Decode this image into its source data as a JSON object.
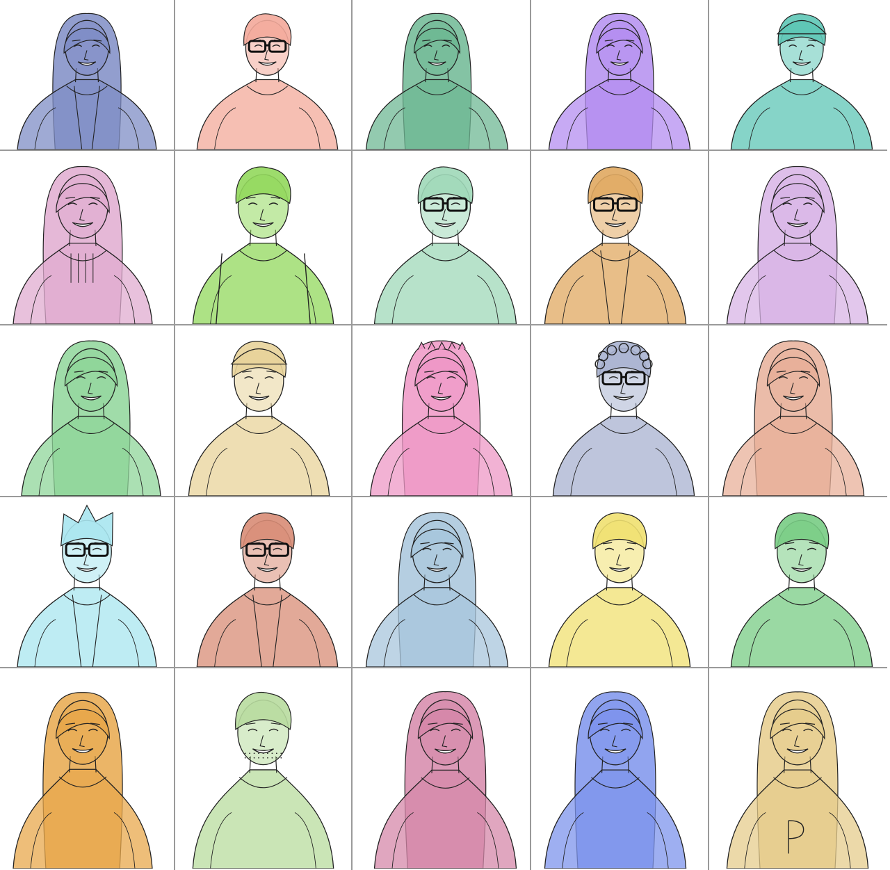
{
  "portraits": [
    {
      "id": 1,
      "row": 1,
      "col": 1,
      "color": "#7f8dc6",
      "hair": "long",
      "glasses": false,
      "accessory": "hoodie"
    },
    {
      "id": 2,
      "row": 1,
      "col": 2,
      "color": "#f3a99a",
      "hair": "short",
      "glasses": true,
      "accessory": "fur-coat"
    },
    {
      "id": 3,
      "row": 1,
      "col": 3,
      "color": "#6fb894",
      "hair": "long",
      "glasses": false,
      "accessory": "none"
    },
    {
      "id": 4,
      "row": 1,
      "col": 4,
      "color": "#b48ef0",
      "hair": "long",
      "glasses": false,
      "accessory": "bangs"
    },
    {
      "id": 5,
      "row": 1,
      "col": 5,
      "color": "#5ec6b6",
      "hair": "short",
      "glasses": false,
      "accessory": "cap"
    },
    {
      "id": 6,
      "row": 2,
      "col": 1,
      "color": "#e0acd0",
      "hair": "long",
      "glasses": false,
      "accessory": "scarf"
    },
    {
      "id": 7,
      "row": 2,
      "col": 2,
      "color": "#92d85c",
      "hair": "short",
      "glasses": false,
      "accessory": "backpack"
    },
    {
      "id": 8,
      "row": 2,
      "col": 3,
      "color": "#9fd8b8",
      "hair": "short",
      "glasses": true,
      "accessory": "none"
    },
    {
      "id": 9,
      "row": 2,
      "col": 4,
      "color": "#e0a860",
      "hair": "short",
      "glasses": true,
      "accessory": "hoodie"
    },
    {
      "id": 10,
      "row": 2,
      "col": 5,
      "color": "#d8b4e6",
      "hair": "long",
      "glasses": false,
      "accessory": "none"
    },
    {
      "id": 11,
      "row": 3,
      "col": 1,
      "color": "#8fd69a",
      "hair": "long",
      "glasses": false,
      "accessory": "none"
    },
    {
      "id": 12,
      "row": 3,
      "col": 2,
      "color": "#e8d39a",
      "hair": "short",
      "glasses": false,
      "accessory": "cap"
    },
    {
      "id": 13,
      "row": 3,
      "col": 3,
      "color": "#ee98c6",
      "hair": "long",
      "glasses": false,
      "accessory": "dino-hood"
    },
    {
      "id": 14,
      "row": 3,
      "col": 4,
      "color": "#a8b2d0",
      "hair": "curly",
      "glasses": true,
      "accessory": "none"
    },
    {
      "id": 15,
      "row": 3,
      "col": 5,
      "color": "#e8b09a",
      "hair": "long",
      "glasses": false,
      "accessory": "none"
    },
    {
      "id": 16,
      "row": 4,
      "col": 1,
      "color": "#a8e6ef",
      "hair": "spiky",
      "glasses": true,
      "accessory": "jacket"
    },
    {
      "id": 17,
      "row": 4,
      "col": 2,
      "color": "#d88c76",
      "hair": "short",
      "glasses": true,
      "accessory": "blazer"
    },
    {
      "id": 18,
      "row": 4,
      "col": 3,
      "color": "#a8c6dc",
      "hair": "long",
      "glasses": false,
      "accessory": "none"
    },
    {
      "id": 19,
      "row": 4,
      "col": 4,
      "color": "#f0e070",
      "hair": "wavy",
      "glasses": false,
      "accessory": "none"
    },
    {
      "id": 20,
      "row": 4,
      "col": 5,
      "color": "#78cc84",
      "hair": "short",
      "glasses": false,
      "accessory": "none"
    },
    {
      "id": 21,
      "row": 5,
      "col": 1,
      "color": "#e8a84c",
      "hair": "long",
      "glasses": false,
      "accessory": "none"
    },
    {
      "id": 22,
      "row": 5,
      "col": 2,
      "color": "#b8dc9e",
      "hair": "short",
      "glasses": false,
      "accessory": "beard"
    },
    {
      "id": 23,
      "row": 5,
      "col": 3,
      "color": "#d688aa",
      "hair": "long",
      "glasses": false,
      "accessory": "none"
    },
    {
      "id": 24,
      "row": 5,
      "col": 4,
      "color": "#7e94ec",
      "hair": "long",
      "glasses": false,
      "accessory": "none"
    },
    {
      "id": 25,
      "row": 5,
      "col": 5,
      "color": "#e6cc8c",
      "hair": "long",
      "glasses": false,
      "accessory": "jersey"
    }
  ]
}
